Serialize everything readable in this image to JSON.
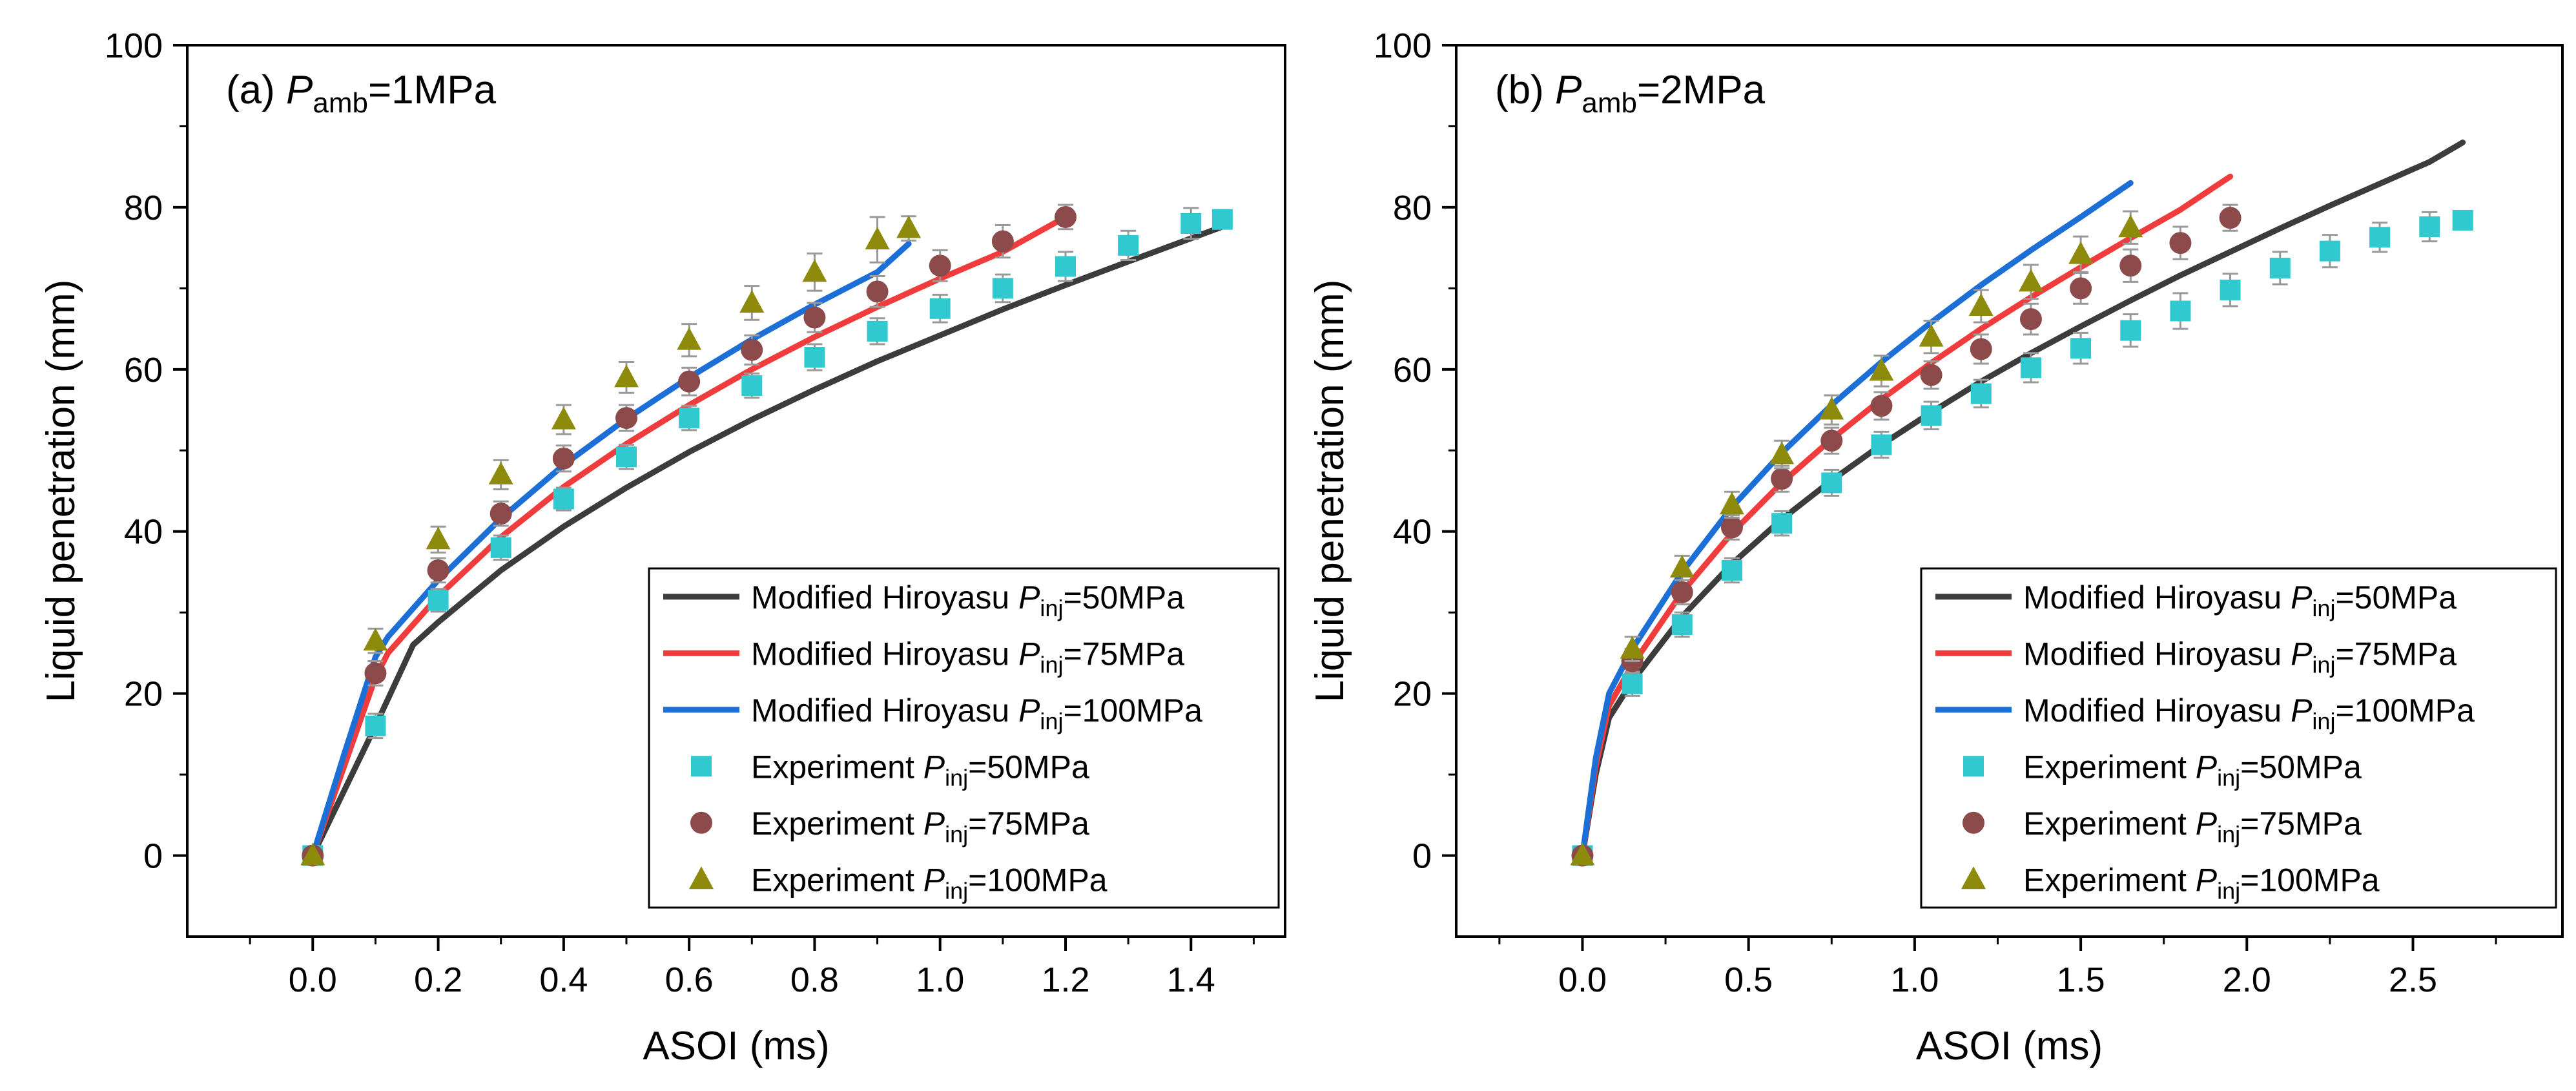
{
  "colors": {
    "p50_line": "#3c3c3c",
    "p75_line": "#f03c3c",
    "p100_line": "#1c6fd6",
    "p50_marker": "#2fc9cf",
    "p75_marker": "#8c4a4a",
    "p100_marker": "#8e8a0c",
    "errorbar": "#999999"
  },
  "chart_data": [
    {
      "type": "line+scatter",
      "panel_label": "(a) ",
      "panel_sym": "P",
      "panel_sub": "amb",
      "panel_suffix": "=1MPa",
      "xlabel": "ASOI (ms)",
      "ylabel": "Liquid penetration (mm)",
      "xlim": [
        -0.2,
        1.55
      ],
      "ylim": [
        -10,
        100
      ],
      "xticks": [
        0.0,
        0.2,
        0.4,
        0.6,
        0.8,
        1.0,
        1.2,
        1.4
      ],
      "xticklabels": [
        "0.0",
        "0.2",
        "0.4",
        "0.6",
        "0.8",
        "1.0",
        "1.2",
        "1.4"
      ],
      "yticks": [
        0,
        20,
        40,
        60,
        80,
        100
      ],
      "yticklabels": [
        "0",
        "20",
        "40",
        "60",
        "80",
        "100"
      ],
      "legend_position": "bottom-right",
      "series": [
        {
          "name": "Modified Hiroyasu P_inj=50MPa",
          "kind": "line",
          "color_key": "p50_line",
          "legend_prefix": "Modified Hiroyasu ",
          "legend_suffix": "=50MPa",
          "x": [
            0,
            0.05,
            0.1,
            0.16,
            0.2,
            0.3,
            0.4,
            0.5,
            0.6,
            0.7,
            0.8,
            0.9,
            1.0,
            1.1,
            1.2,
            1.3,
            1.45
          ],
          "y": [
            0,
            8,
            16,
            26,
            28.8,
            35.2,
            40.6,
            45.4,
            49.8,
            53.8,
            57.5,
            61,
            64.2,
            67.4,
            70.4,
            73.3,
            77.6
          ]
        },
        {
          "name": "Modified Hiroyasu P_inj=75MPa",
          "kind": "line",
          "color_key": "p75_line",
          "legend_prefix": "Modified Hiroyasu ",
          "legend_suffix": "=75MPa",
          "x": [
            0,
            0.05,
            0.1,
            0.12,
            0.2,
            0.3,
            0.4,
            0.5,
            0.6,
            0.7,
            0.8,
            0.9,
            1.0,
            1.1,
            1.2
          ],
          "y": [
            0,
            11,
            22,
            25,
            32,
            39.3,
            45.5,
            50.8,
            55.6,
            60,
            64,
            67.7,
            71.2,
            74.5,
            78.8
          ]
        },
        {
          "name": "Modified Hiroyasu P_inj=100MPa",
          "kind": "line",
          "color_key": "p100_line",
          "legend_prefix": "Modified Hiroyasu ",
          "legend_suffix": "=100MPa",
          "x": [
            0,
            0.05,
            0.1,
            0.12,
            0.2,
            0.3,
            0.4,
            0.5,
            0.6,
            0.7,
            0.8,
            0.9,
            0.95
          ],
          "y": [
            0,
            12.5,
            24.5,
            27,
            34,
            41.6,
            48.2,
            53.9,
            59,
            63.7,
            68,
            72,
            75.5
          ]
        },
        {
          "name": "Experiment P_inj=50MPa",
          "kind": "scatter",
          "marker": "square",
          "color_key": "p50_marker",
          "legend_prefix": "Experiment ",
          "legend_suffix": "=50MPa",
          "x": [
            0,
            0.1,
            0.2,
            0.3,
            0.4,
            0.5,
            0.6,
            0.7,
            0.8,
            0.9,
            1.0,
            1.1,
            1.2,
            1.3,
            1.4,
            1.45
          ],
          "y": [
            0,
            16,
            31.5,
            38,
            44,
            49.2,
            54,
            58,
            61.5,
            64.7,
            67.5,
            70,
            72.7,
            75.3,
            78,
            78.5
          ],
          "err": [
            0,
            1.5,
            1.4,
            1.5,
            1.4,
            1.5,
            1.5,
            1.5,
            1.6,
            1.6,
            1.7,
            1.7,
            1.8,
            1.8,
            1.9,
            0
          ]
        },
        {
          "name": "Experiment P_inj=75MPa",
          "kind": "scatter",
          "marker": "circle",
          "color_key": "p75_marker",
          "legend_prefix": "Experiment ",
          "legend_suffix": "=75MPa",
          "x": [
            0,
            0.1,
            0.2,
            0.3,
            0.4,
            0.5,
            0.6,
            0.7,
            0.8,
            0.9,
            1.0,
            1.1,
            1.2
          ],
          "y": [
            0,
            22.5,
            35.2,
            42.2,
            49,
            54,
            58.5,
            62.4,
            66.4,
            69.6,
            72.8,
            75.8,
            78.8
          ],
          "err": [
            0,
            1.5,
            1.5,
            1.5,
            1.6,
            1.6,
            1.7,
            1.8,
            1.8,
            1.9,
            1.9,
            2.0,
            1.5
          ]
        },
        {
          "name": "Experiment P_inj=100MPa",
          "kind": "scatter",
          "marker": "triangle",
          "color_key": "p100_marker",
          "legend_prefix": "Experiment ",
          "legend_suffix": "=100MPa",
          "x": [
            0,
            0.1,
            0.2,
            0.3,
            0.4,
            0.5,
            0.6,
            0.7,
            0.8,
            0.9,
            0.95
          ],
          "y": [
            0,
            26.5,
            39,
            47,
            53.8,
            59,
            63.6,
            68.2,
            72,
            76,
            77.4
          ],
          "err": [
            0,
            1.5,
            1.6,
            1.8,
            1.8,
            1.9,
            2.0,
            2.1,
            2.3,
            2.8,
            1.5
          ]
        }
      ]
    },
    {
      "type": "line+scatter",
      "panel_label": "(b) ",
      "panel_sym": "P",
      "panel_sub": "amb",
      "panel_suffix": "=2MPa",
      "xlabel": "ASOI (ms)",
      "ylabel": "Liquid penetration (mm)",
      "xlim": [
        -0.38,
        2.95
      ],
      "ylim": [
        -10,
        100
      ],
      "xticks": [
        0.0,
        0.5,
        1.0,
        1.5,
        2.0,
        2.5
      ],
      "xticklabels": [
        "0.0",
        "0.5",
        "1.0",
        "1.5",
        "2.0",
        "2.5"
      ],
      "yticks": [
        0,
        20,
        40,
        60,
        80,
        100
      ],
      "yticklabels": [
        "0",
        "20",
        "40",
        "60",
        "80",
        "100"
      ],
      "legend_position": "bottom-right",
      "series": [
        {
          "name": "Modified Hiroyasu P_inj=50MPa",
          "kind": "line",
          "color_key": "p50_line",
          "legend_prefix": "Modified Hiroyasu ",
          "legend_suffix": "=50MPa",
          "x": [
            0,
            0.04,
            0.08,
            0.15,
            0.3,
            0.45,
            0.6,
            0.75,
            0.9,
            1.05,
            1.2,
            1.35,
            1.5,
            1.65,
            1.8,
            1.95,
            2.1,
            2.25,
            2.4,
            2.55,
            2.65
          ],
          "y": [
            0,
            10,
            17,
            21.5,
            29.5,
            36,
            41.5,
            46.3,
            50.7,
            54.7,
            58.5,
            62,
            65.3,
            68.5,
            71.6,
            74.5,
            77.4,
            80.2,
            82.9,
            85.6,
            88
          ]
        },
        {
          "name": "Modified Hiroyasu P_inj=75MPa",
          "kind": "line",
          "color_key": "p75_line",
          "legend_prefix": "Modified Hiroyasu ",
          "legend_suffix": "=75MPa",
          "x": [
            0,
            0.04,
            0.08,
            0.15,
            0.3,
            0.45,
            0.6,
            0.75,
            0.9,
            1.05,
            1.2,
            1.35,
            1.5,
            1.65,
            1.8,
            1.95
          ],
          "y": [
            0,
            11,
            18.5,
            23.5,
            32.5,
            39.8,
            46,
            51.4,
            56.3,
            60.8,
            65,
            68.9,
            72.6,
            76.2,
            79.7,
            83.8
          ]
        },
        {
          "name": "Modified Hiroyasu P_inj=100MPa",
          "kind": "line",
          "color_key": "p100_line",
          "legend_prefix": "Modified Hiroyasu ",
          "legend_suffix": "=100MPa",
          "x": [
            0,
            0.04,
            0.08,
            0.15,
            0.3,
            0.45,
            0.6,
            0.75,
            0.9,
            1.05,
            1.2,
            1.35,
            1.5,
            1.65
          ],
          "y": [
            0,
            12,
            20,
            25.5,
            35,
            43,
            49.7,
            55.6,
            60.9,
            65.8,
            70.4,
            74.7,
            78.8,
            83
          ]
        },
        {
          "name": "Experiment P_inj=50MPa",
          "kind": "scatter",
          "marker": "square",
          "color_key": "p50_marker",
          "legend_prefix": "Experiment ",
          "legend_suffix": "=50MPa",
          "x": [
            0,
            0.15,
            0.3,
            0.45,
            0.6,
            0.75,
            0.9,
            1.05,
            1.2,
            1.35,
            1.5,
            1.65,
            1.8,
            1.95,
            2.1,
            2.25,
            2.4,
            2.55,
            2.65
          ],
          "y": [
            0,
            21.2,
            28.5,
            35.2,
            41,
            46,
            50.7,
            54.3,
            57,
            60.2,
            62.6,
            64.8,
            67.2,
            69.8,
            72.5,
            74.6,
            76.3,
            77.6,
            78.4
          ],
          "err": [
            0,
            1.5,
            1.5,
            1.5,
            1.5,
            1.6,
            1.6,
            1.7,
            1.7,
            1.8,
            1.9,
            2.0,
            2.2,
            2.0,
            2.0,
            2.0,
            1.8,
            1.8,
            0
          ]
        },
        {
          "name": "Experiment P_inj=75MPa",
          "kind": "scatter",
          "marker": "circle",
          "color_key": "p75_marker",
          "legend_prefix": "Experiment ",
          "legend_suffix": "=75MPa",
          "x": [
            0,
            0.15,
            0.3,
            0.45,
            0.6,
            0.75,
            0.9,
            1.05,
            1.2,
            1.35,
            1.5,
            1.65,
            1.8,
            1.95
          ],
          "y": [
            0,
            24,
            32.5,
            40.5,
            46.5,
            51.2,
            55.5,
            59.3,
            62.5,
            66.2,
            70,
            72.8,
            75.6,
            78.7
          ],
          "err": [
            0,
            1.5,
            1.5,
            1.5,
            1.6,
            1.6,
            1.7,
            1.7,
            1.8,
            1.9,
            1.9,
            2.0,
            2.0,
            1.6
          ]
        },
        {
          "name": "Experiment P_inj=100MPa",
          "kind": "scatter",
          "marker": "triangle",
          "color_key": "p100_marker",
          "legend_prefix": "Experiment ",
          "legend_suffix": "=100MPa",
          "x": [
            0,
            0.15,
            0.3,
            0.45,
            0.6,
            0.75,
            0.9,
            1.05,
            1.2,
            1.35,
            1.5,
            1.65
          ],
          "y": [
            0,
            25.5,
            35.5,
            43.3,
            49.5,
            55,
            59.8,
            64,
            67.8,
            70.8,
            74.2,
            77.5
          ],
          "err": [
            0,
            1.5,
            1.5,
            1.6,
            1.7,
            1.8,
            1.9,
            2.0,
            2.0,
            2.1,
            2.2,
            2.0
          ]
        }
      ]
    }
  ]
}
